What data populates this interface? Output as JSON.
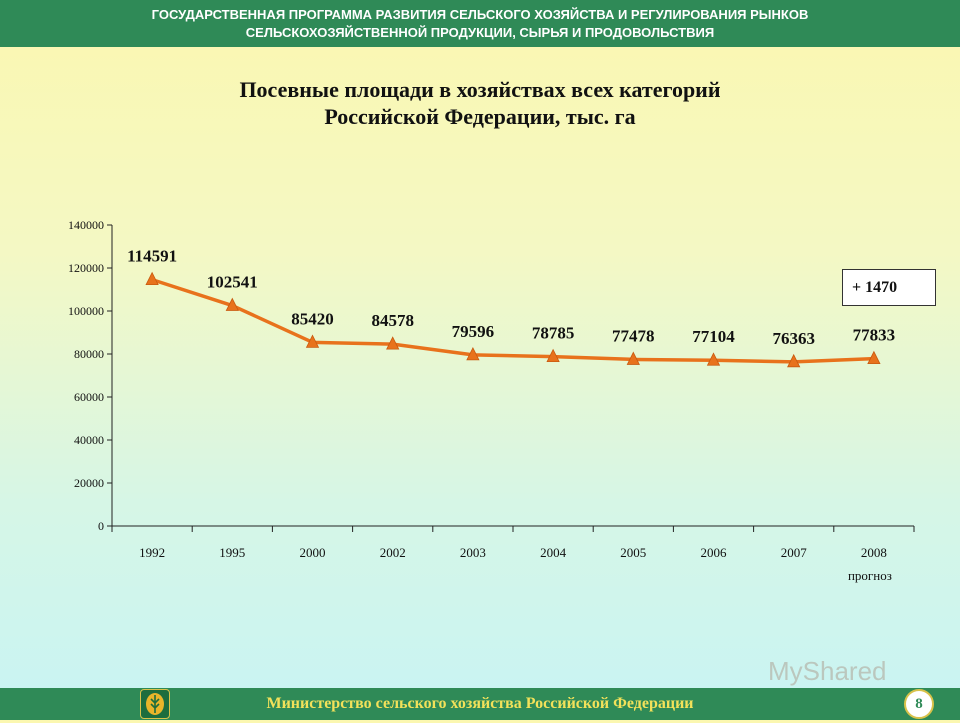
{
  "header": {
    "line1": "ГОСУДАРСТВЕННАЯ ПРОГРАММА РАЗВИТИЯ СЕЛЬСКОГО ХОЗЯЙСТВА И РЕГУЛИРОВАНИЯ РЫНКОВ",
    "line2": "СЕЛЬСКОХОЗЯЙСТВЕННОЙ ПРОДУКЦИИ, СЫРЬЯ И ПРОДОВОЛЬСТВИЯ"
  },
  "chart_data": {
    "type": "line",
    "title_line1": "Посевные площади в хозяйствах всех категорий",
    "title_line2": "Российской Федерации, тыс. га",
    "categories": [
      "1992",
      "1995",
      "2000",
      "2002",
      "2003",
      "2004",
      "2005",
      "2006",
      "2007",
      "2008"
    ],
    "values": [
      114591,
      102541,
      85420,
      84578,
      79596,
      78785,
      77478,
      77104,
      76363,
      77833
    ],
    "x_note": "прогноз",
    "ylim": [
      0,
      140000
    ],
    "y_ticks": [
      0,
      20000,
      40000,
      60000,
      80000,
      100000,
      120000,
      140000
    ],
    "annotation": "+ 1470",
    "line_color": "#e8721c",
    "grid": false
  },
  "footer": {
    "ministry": "Министерство сельского хозяйства Российской Федерации",
    "page": "8"
  },
  "watermark": "MyShared",
  "colors": {
    "banner": "#2f8a57",
    "footer_text": "#f2e15a"
  }
}
